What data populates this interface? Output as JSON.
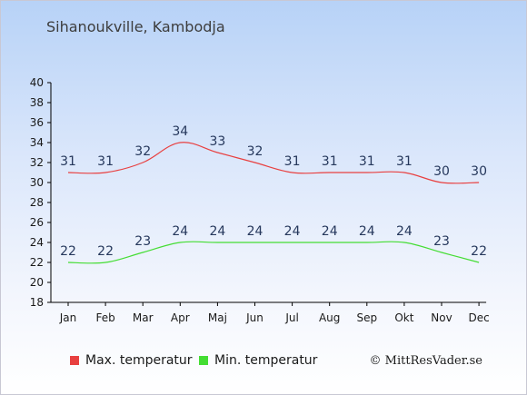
{
  "page": {
    "title": "Sihanoukville, Kambodja",
    "copyright": "© MittResVader.se"
  },
  "colors": {
    "max": "#e84040",
    "min": "#44dd33",
    "axis": "#000000",
    "label": "#26385c"
  },
  "chart_data": {
    "type": "line",
    "title": "Sihanoukville, Kambodja",
    "categories": [
      "Jan",
      "Feb",
      "Mar",
      "Apr",
      "Maj",
      "Jun",
      "Jul",
      "Aug",
      "Sep",
      "Okt",
      "Nov",
      "Dec"
    ],
    "ylim": [
      18,
      40
    ],
    "yticks": [
      18,
      20,
      22,
      24,
      26,
      28,
      30,
      32,
      34,
      36,
      38,
      40
    ],
    "grid": false,
    "legend_position": "bottom",
    "series": [
      {
        "name": "Max. temperatur",
        "color": "#e84040",
        "values": [
          31,
          31,
          32,
          34,
          33,
          32,
          31,
          31,
          31,
          31,
          30,
          30
        ]
      },
      {
        "name": "Min. temperatur",
        "color": "#44dd33",
        "values": [
          22,
          22,
          23,
          24,
          24,
          24,
          24,
          24,
          24,
          24,
          23,
          22
        ]
      }
    ]
  }
}
